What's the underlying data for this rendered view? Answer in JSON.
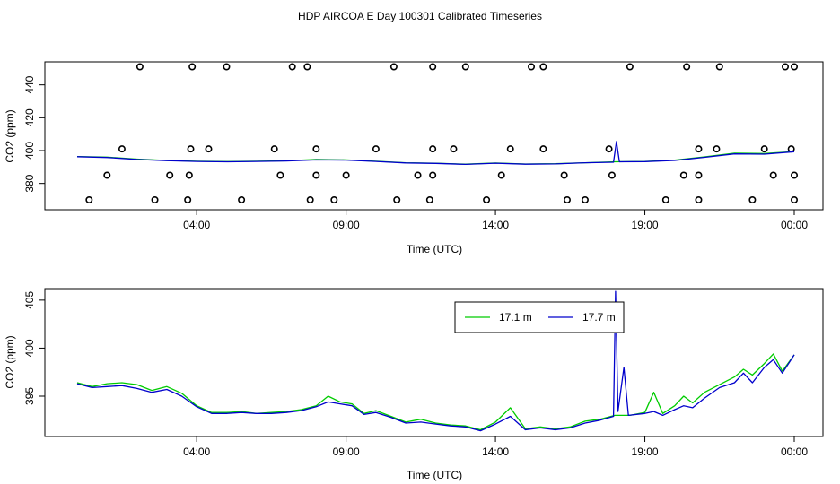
{
  "title": "HDP AIRCOA E  Day 100301  Calibrated Timeseries",
  "colors": {
    "series_17_1": "#00cc00",
    "series_17_7": "#0000cc",
    "axis": "#000000",
    "markers": "#000000"
  },
  "chart_data": [
    {
      "type": "line",
      "title": "",
      "xlabel": "Time (UTC)",
      "ylabel": "CO2 (ppm)",
      "x_ticks": [
        "04:00",
        "09:00",
        "14:00",
        "19:00",
        "00:00"
      ],
      "x_tick_hours": [
        4,
        9,
        14,
        19,
        24
      ],
      "xlim_hours": [
        0,
        24.5
      ],
      "y_ticks": [
        380,
        400,
        420,
        440
      ],
      "ylim": [
        364,
        454
      ],
      "grid": false,
      "series": [
        {
          "name": "17.1 m",
          "color": "#00cc00",
          "points": [
            [
              0,
              396.4
            ],
            [
              1,
              396.0
            ],
            [
              2,
              394.8
            ],
            [
              3,
              394.0
            ],
            [
              4,
              393.5
            ],
            [
              5,
              393.3
            ],
            [
              6,
              393.5
            ],
            [
              7,
              393.8
            ],
            [
              8,
              394.6
            ],
            [
              9,
              394.3
            ],
            [
              10,
              393.5
            ],
            [
              11,
              392.6
            ],
            [
              12,
              392.3
            ],
            [
              13,
              391.7
            ],
            [
              14,
              392.4
            ],
            [
              15,
              391.8
            ],
            [
              16,
              392.0
            ],
            [
              17,
              392.6
            ],
            [
              18,
              393.2
            ],
            [
              19,
              393.4
            ],
            [
              20,
              394.2
            ],
            [
              21,
              396.2
            ],
            [
              22,
              398.4
            ],
            [
              23,
              398.2
            ],
            [
              24,
              399.4
            ]
          ]
        },
        {
          "name": "17.7 m",
          "color": "#0000cc",
          "points": [
            [
              0,
              396.3
            ],
            [
              1,
              395.8
            ],
            [
              2,
              394.6
            ],
            [
              3,
              393.9
            ],
            [
              4,
              393.4
            ],
            [
              5,
              393.2
            ],
            [
              6,
              393.4
            ],
            [
              7,
              393.7
            ],
            [
              8,
              394.3
            ],
            [
              9,
              394.2
            ],
            [
              10,
              393.4
            ],
            [
              11,
              392.5
            ],
            [
              12,
              392.2
            ],
            [
              13,
              391.6
            ],
            [
              14,
              392.3
            ],
            [
              15,
              391.7
            ],
            [
              16,
              391.9
            ],
            [
              17,
              392.6
            ],
            [
              17.95,
              392.9
            ],
            [
              18.05,
              405.5
            ],
            [
              18.15,
              393.2
            ],
            [
              19,
              393.3
            ],
            [
              20,
              394.0
            ],
            [
              21,
              395.9
            ],
            [
              22,
              398.0
            ],
            [
              23,
              397.8
            ],
            [
              24,
              399.3
            ]
          ]
        }
      ],
      "markers": {
        "description_free": true,
        "rows": [
          {
            "y": 370,
            "x_hours": [
              0.4,
              2.6,
              3.7,
              5.5,
              7.8,
              8.6,
              10.7,
              11.8,
              13.7,
              16.4,
              17.0,
              19.7,
              20.8,
              22.6,
              24.0
            ]
          },
          {
            "y": 385,
            "x_hours": [
              1.0,
              3.1,
              3.75,
              6.8,
              8.0,
              9.0,
              11.4,
              11.9,
              14.2,
              16.3,
              17.9,
              20.3,
              20.8,
              23.3,
              24.0
            ]
          },
          {
            "y": 401,
            "x_hours": [
              1.5,
              3.8,
              4.4,
              6.6,
              8.0,
              10.0,
              11.9,
              12.6,
              14.5,
              15.6,
              17.8,
              20.8,
              21.4,
              23.0,
              23.9
            ]
          },
          {
            "y": 451,
            "x_hours": [
              2.1,
              3.85,
              5.0,
              7.2,
              7.7,
              10.6,
              11.9,
              13.0,
              15.2,
              15.6,
              18.5,
              20.4,
              21.5,
              23.7,
              24.0
            ]
          }
        ]
      }
    },
    {
      "type": "line",
      "title": "",
      "xlabel": "Time (UTC)",
      "ylabel": "CO2 (ppm)",
      "x_ticks": [
        "04:00",
        "09:00",
        "14:00",
        "19:00",
        "00:00"
      ],
      "x_tick_hours": [
        4,
        9,
        14,
        19,
        24
      ],
      "xlim_hours": [
        0,
        24.5
      ],
      "y_ticks": [
        395,
        400,
        405
      ],
      "ylim": [
        390.8,
        406.2
      ],
      "grid": false,
      "legend": {
        "position": "top-center",
        "entries": [
          "17.1 m",
          "17.7 m"
        ]
      },
      "series": [
        {
          "name": "17.1 m",
          "color": "#00cc00",
          "points": [
            [
              0,
              396.4
            ],
            [
              0.5,
              396.0
            ],
            [
              1,
              396.3
            ],
            [
              1.5,
              396.4
            ],
            [
              2,
              396.2
            ],
            [
              2.5,
              395.6
            ],
            [
              3,
              396.0
            ],
            [
              3.5,
              395.3
            ],
            [
              4,
              394.0
            ],
            [
              4.5,
              393.3
            ],
            [
              5,
              393.3
            ],
            [
              5.5,
              393.4
            ],
            [
              6,
              393.2
            ],
            [
              6.5,
              393.3
            ],
            [
              7,
              393.4
            ],
            [
              7.5,
              393.6
            ],
            [
              8,
              394.0
            ],
            [
              8.4,
              395.0
            ],
            [
              8.8,
              394.4
            ],
            [
              9.2,
              394.2
            ],
            [
              9.6,
              393.2
            ],
            [
              10,
              393.5
            ],
            [
              10.5,
              392.9
            ],
            [
              11,
              392.3
            ],
            [
              11.5,
              392.6
            ],
            [
              12,
              392.2
            ],
            [
              12.5,
              392.0
            ],
            [
              13,
              391.9
            ],
            [
              13.5,
              391.5
            ],
            [
              14,
              392.3
            ],
            [
              14.5,
              393.8
            ],
            [
              15,
              391.6
            ],
            [
              15.5,
              391.8
            ],
            [
              16,
              391.6
            ],
            [
              16.5,
              391.8
            ],
            [
              17,
              392.4
            ],
            [
              17.5,
              392.6
            ],
            [
              18,
              393.0
            ],
            [
              18.5,
              393.0
            ],
            [
              19,
              393.3
            ],
            [
              19.3,
              395.4
            ],
            [
              19.6,
              393.2
            ],
            [
              20,
              394.0
            ],
            [
              20.3,
              395.0
            ],
            [
              20.6,
              394.3
            ],
            [
              21,
              395.4
            ],
            [
              21.5,
              396.2
            ],
            [
              22,
              397.0
            ],
            [
              22.3,
              397.8
            ],
            [
              22.6,
              397.2
            ],
            [
              23,
              398.4
            ],
            [
              23.3,
              399.4
            ],
            [
              23.6,
              397.6
            ],
            [
              24,
              399.3
            ]
          ]
        },
        {
          "name": "17.7 m",
          "color": "#0000cc",
          "points": [
            [
              0,
              396.3
            ],
            [
              0.5,
              395.9
            ],
            [
              1,
              396.0
            ],
            [
              1.5,
              396.1
            ],
            [
              2,
              395.8
            ],
            [
              2.5,
              395.4
            ],
            [
              3,
              395.7
            ],
            [
              3.5,
              395.0
            ],
            [
              4,
              393.9
            ],
            [
              4.5,
              393.2
            ],
            [
              5,
              393.2
            ],
            [
              5.5,
              393.3
            ],
            [
              6,
              393.2
            ],
            [
              6.5,
              393.2
            ],
            [
              7,
              393.3
            ],
            [
              7.5,
              393.5
            ],
            [
              8,
              393.9
            ],
            [
              8.4,
              394.4
            ],
            [
              8.8,
              394.2
            ],
            [
              9.2,
              394.0
            ],
            [
              9.6,
              393.1
            ],
            [
              10,
              393.3
            ],
            [
              10.5,
              392.8
            ],
            [
              11,
              392.2
            ],
            [
              11.5,
              392.3
            ],
            [
              12,
              392.1
            ],
            [
              12.5,
              391.9
            ],
            [
              13,
              391.8
            ],
            [
              13.5,
              391.4
            ],
            [
              14,
              392.1
            ],
            [
              14.5,
              392.9
            ],
            [
              15,
              391.5
            ],
            [
              15.5,
              391.7
            ],
            [
              16,
              391.5
            ],
            [
              16.5,
              391.7
            ],
            [
              17,
              392.2
            ],
            [
              17.5,
              392.5
            ],
            [
              17.95,
              392.9
            ],
            [
              18.02,
              405.9
            ],
            [
              18.1,
              393.4
            ],
            [
              18.3,
              398.0
            ],
            [
              18.45,
              393.0
            ],
            [
              19,
              393.2
            ],
            [
              19.3,
              393.4
            ],
            [
              19.6,
              393.0
            ],
            [
              20,
              393.6
            ],
            [
              20.3,
              394.0
            ],
            [
              20.6,
              393.8
            ],
            [
              21,
              394.8
            ],
            [
              21.5,
              395.9
            ],
            [
              22,
              396.4
            ],
            [
              22.3,
              397.4
            ],
            [
              22.6,
              396.4
            ],
            [
              23,
              398.0
            ],
            [
              23.3,
              398.8
            ],
            [
              23.6,
              397.4
            ],
            [
              24,
              399.3
            ]
          ]
        }
      ]
    }
  ]
}
